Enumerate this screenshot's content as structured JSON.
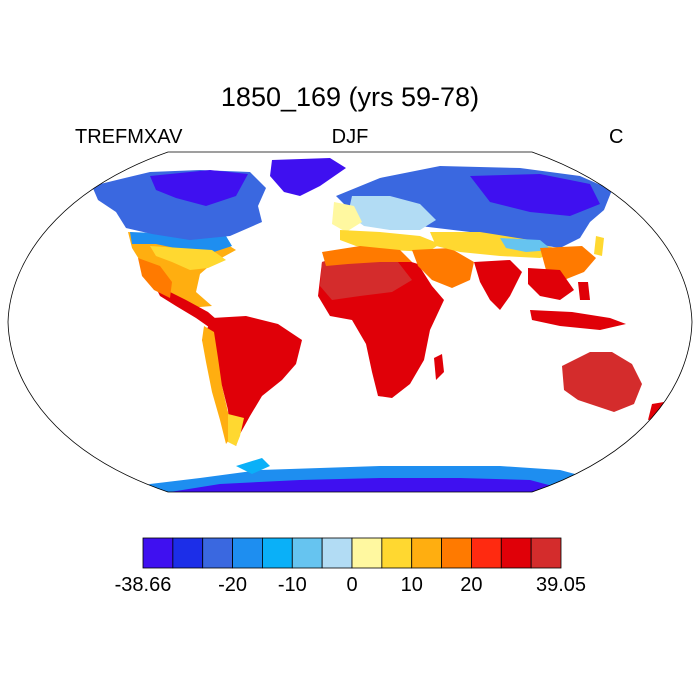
{
  "title": "1850_169 (yrs 59-78)",
  "subtitle_left": "TREFMXAV",
  "subtitle_center": "DJF",
  "subtitle_right": "C",
  "map": {
    "projection": "robinson",
    "field": "TREFMXAV",
    "season": "DJF",
    "units": "C"
  },
  "colorbar": {
    "min": -38.66,
    "max": 39.05,
    "colors": [
      "#3f10f0",
      "#1c2ee8",
      "#3a68e0",
      "#1e8ef0",
      "#0ab0f8",
      "#66c4f0",
      "#b2dcf4",
      "#fff8a0",
      "#ffd830",
      "#ffae10",
      "#ff7a00",
      "#ff2a10",
      "#e00008",
      "#d42c2c"
    ],
    "labels": [
      "-38.66",
      "-20",
      "-10",
      "0",
      "10",
      "20",
      "39.05"
    ]
  }
}
